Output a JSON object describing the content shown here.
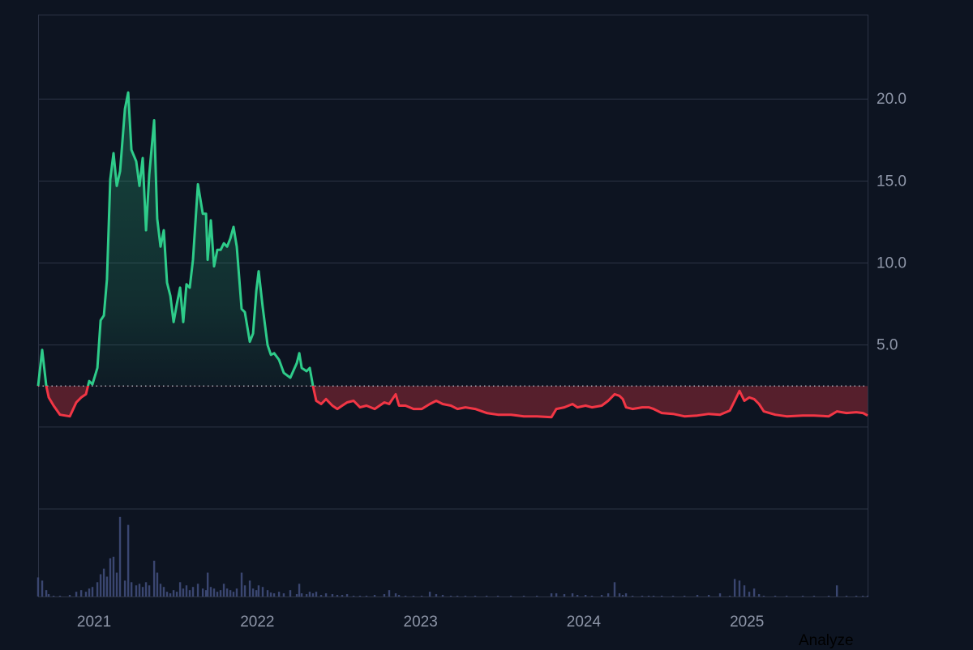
{
  "chart_data": {
    "type": "baseline",
    "baseline": 2.5,
    "x": [
      2020.657,
      2020.682,
      2020.707,
      2020.722,
      2020.752,
      2020.791,
      2020.851,
      2020.891,
      2020.921,
      2020.95,
      2020.97,
      2020.99,
      2021.02,
      2021.04,
      2021.06,
      2021.079,
      2021.099,
      2021.119,
      2021.139,
      2021.159,
      2021.189,
      2021.209,
      2021.229,
      2021.258,
      2021.278,
      2021.298,
      2021.318,
      2021.338,
      2021.368,
      2021.387,
      2021.407,
      2021.427,
      2021.447,
      2021.467,
      2021.487,
      2021.507,
      2021.527,
      2021.546,
      2021.566,
      2021.586,
      2021.606,
      2021.636,
      2021.666,
      2021.686,
      2021.696,
      2021.715,
      2021.735,
      2021.755,
      2021.775,
      2021.795,
      2021.815,
      2021.835,
      2021.854,
      2021.874,
      2021.904,
      2021.924,
      2021.954,
      2021.974,
      2021.994,
      2022.008,
      2022.033,
      2022.063,
      2022.083,
      2022.103,
      2022.133,
      2022.162,
      2022.202,
      2022.242,
      2022.257,
      2022.272,
      2022.302,
      2022.321,
      2022.341,
      2022.361,
      2022.391,
      2022.421,
      2022.46,
      2022.49,
      2022.52,
      2022.55,
      2022.59,
      2022.629,
      2022.669,
      2022.719,
      2022.778,
      2022.808,
      2022.848,
      2022.868,
      2022.908,
      2022.957,
      2023.007,
      2023.057,
      2023.096,
      2023.136,
      2023.186,
      2023.226,
      2023.275,
      2023.335,
      2023.405,
      2023.474,
      2023.554,
      2023.633,
      2023.713,
      2023.802,
      2023.832,
      2023.881,
      2023.931,
      2023.961,
      2024.011,
      2024.05,
      2024.11,
      2024.15,
      2024.189,
      2024.219,
      2024.239,
      2024.259,
      2024.299,
      2024.358,
      2024.398,
      2024.428,
      2024.478,
      2024.547,
      2024.617,
      2024.696,
      2024.766,
      2024.835,
      2024.895,
      2024.925,
      2024.954,
      2024.984,
      2025.014,
      2025.044,
      2025.074,
      2025.103,
      2025.173,
      2025.243,
      2025.342,
      2025.411,
      2025.501,
      2025.551,
      2025.61,
      2025.67,
      2025.71,
      2025.739
    ],
    "series": [
      {
        "up_color": "#2ecc8a",
        "down_color": "#f23645",
        "values": [
          2.5,
          4.7,
          2.5,
          1.8,
          1.3,
          0.75,
          0.65,
          1.5,
          1.8,
          2.0,
          2.8,
          2.6,
          3.6,
          6.5,
          6.8,
          9.0,
          15.1,
          16.7,
          14.7,
          15.6,
          19.4,
          20.4,
          16.9,
          16.2,
          14.7,
          16.4,
          12.0,
          15.4,
          18.7,
          12.7,
          11.0,
          12.0,
          8.8,
          8.0,
          6.4,
          7.5,
          8.5,
          6.4,
          8.7,
          8.5,
          10.2,
          14.8,
          13.0,
          13.0,
          10.2,
          12.6,
          9.8,
          10.8,
          10.8,
          11.2,
          11.0,
          11.5,
          12.2,
          11.0,
          7.2,
          7.0,
          5.2,
          5.7,
          8.3,
          9.5,
          7.3,
          5.0,
          4.4,
          4.5,
          4.1,
          3.3,
          3.0,
          3.9,
          4.5,
          3.6,
          3.4,
          3.6,
          2.5,
          1.6,
          1.4,
          1.7,
          1.3,
          1.1,
          1.3,
          1.5,
          1.6,
          1.2,
          1.3,
          1.1,
          1.5,
          1.4,
          2.0,
          1.3,
          1.3,
          1.1,
          1.1,
          1.4,
          1.6,
          1.4,
          1.3,
          1.1,
          1.2,
          1.1,
          0.85,
          0.75,
          0.75,
          0.65,
          0.65,
          0.6,
          1.1,
          1.2,
          1.4,
          1.2,
          1.3,
          1.2,
          1.3,
          1.6,
          2.0,
          1.9,
          1.7,
          1.2,
          1.1,
          1.2,
          1.2,
          1.1,
          0.85,
          0.8,
          0.65,
          0.7,
          0.8,
          0.75,
          1.0,
          1.6,
          2.2,
          1.6,
          1.8,
          1.7,
          1.4,
          0.95,
          0.75,
          0.65,
          0.7,
          0.7,
          0.65,
          0.95,
          0.85,
          0.9,
          0.85,
          0.7
        ]
      }
    ],
    "volume": {
      "color": "#3a4670",
      "ylim": [
        0,
        110
      ],
      "values": [
        24,
        20,
        8,
        3,
        1,
        1,
        2,
        6,
        8,
        6,
        10,
        12,
        18,
        28,
        35,
        25,
        48,
        50,
        30,
        100,
        20,
        90,
        18,
        14,
        16,
        12,
        18,
        14,
        45,
        30,
        16,
        12,
        6,
        4,
        8,
        6,
        18,
        10,
        14,
        8,
        12,
        16,
        10,
        8,
        30,
        12,
        10,
        6,
        8,
        16,
        10,
        8,
        6,
        10,
        30,
        14,
        20,
        10,
        8,
        14,
        12,
        8,
        5,
        4,
        6,
        4,
        8,
        3,
        16,
        4,
        3,
        6,
        4,
        6,
        2,
        4,
        3,
        2,
        2,
        3,
        1,
        1,
        1,
        2,
        3,
        8,
        4,
        2,
        1,
        1,
        1,
        6,
        3,
        2,
        1,
        1,
        1,
        1,
        1,
        1,
        1,
        1,
        1,
        4,
        4,
        3,
        4,
        2,
        2,
        1,
        2,
        4,
        18,
        4,
        2,
        4,
        1,
        1,
        1,
        1,
        1,
        1,
        1,
        2,
        2,
        4,
        1,
        22,
        20,
        14,
        6,
        10,
        3,
        1,
        1,
        1,
        1,
        1,
        1,
        14,
        1,
        1,
        1,
        1
      ]
    },
    "xlim": [
      2020.657,
      2025.739
    ],
    "xticks": [
      2021,
      2022,
      2023,
      2024,
      2025
    ],
    "ylim": [
      -5,
      25.15
    ],
    "yticks": [
      {
        "value": 0,
        "label": null
      },
      {
        "value": 5,
        "label": "5.0"
      },
      {
        "value": 10,
        "label": "10.0"
      },
      {
        "value": 15,
        "label": "15.0"
      },
      {
        "value": 20,
        "label": "20.0"
      }
    ],
    "grid": true
  },
  "analyze_button": "Analyze"
}
